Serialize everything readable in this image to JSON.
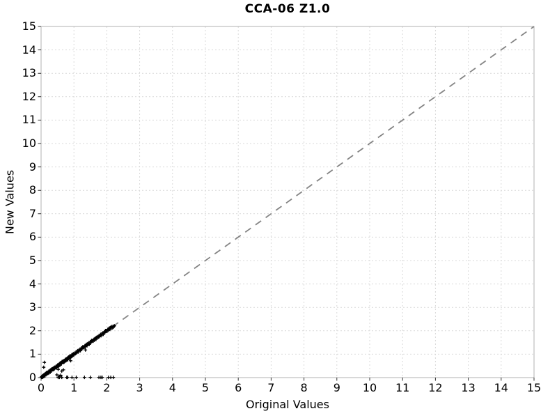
{
  "chart_data": {
    "type": "scatter",
    "title": "CCA-06 Z1.0",
    "xlabel": "Original Values",
    "ylabel": "New Values",
    "xlim": [
      0,
      15
    ],
    "ylim": [
      0,
      15
    ],
    "xticks": [
      0,
      1,
      2,
      3,
      4,
      5,
      6,
      7,
      8,
      9,
      10,
      11,
      12,
      13,
      14,
      15
    ],
    "yticks": [
      0,
      1,
      2,
      3,
      4,
      5,
      6,
      7,
      8,
      9,
      10,
      11,
      12,
      13,
      14,
      15
    ],
    "grid": true,
    "legend": false,
    "identity_line": {
      "from": [
        0,
        0
      ],
      "to": [
        15,
        15
      ],
      "style": "dashed",
      "color": "#848484"
    },
    "marker": {
      "shape": "plus",
      "color": "#000000",
      "size": 5
    },
    "colors": {
      "grid": "#d9d9d9",
      "border": "#b0b0b0",
      "tick": "#333333",
      "text": "#000000",
      "background": "#ffffff"
    },
    "series": [
      {
        "name": "values",
        "points": [
          [
            0.01,
            0.01
          ],
          [
            0.02,
            0.04
          ],
          [
            0.03,
            0.01
          ],
          [
            0.04,
            0.07
          ],
          [
            0.05,
            0.02
          ],
          [
            0.06,
            0.07
          ],
          [
            0.07,
            0.11
          ],
          [
            0.08,
            0.04
          ],
          [
            0.09,
            0.11
          ],
          [
            0.1,
            0.09
          ],
          [
            0.11,
            0.14
          ],
          [
            0.12,
            0.07
          ],
          [
            0.13,
            0.13
          ],
          [
            0.14,
            0.18
          ],
          [
            0.15,
            0.13
          ],
          [
            0.16,
            0.21
          ],
          [
            0.17,
            0.17
          ],
          [
            0.18,
            0.2
          ],
          [
            0.19,
            0.17
          ],
          [
            0.2,
            0.23
          ],
          [
            0.21,
            0.18
          ],
          [
            0.22,
            0.23
          ],
          [
            0.23,
            0.27
          ],
          [
            0.24,
            0.2
          ],
          [
            0.25,
            0.27
          ],
          [
            0.26,
            0.25
          ],
          [
            0.27,
            0.3
          ],
          [
            0.28,
            0.23
          ],
          [
            0.29,
            0.29
          ],
          [
            0.3,
            0.34
          ],
          [
            0.31,
            0.29
          ],
          [
            0.32,
            0.37
          ],
          [
            0.33,
            0.33
          ],
          [
            0.34,
            0.36
          ],
          [
            0.35,
            0.33
          ],
          [
            0.36,
            0.39
          ],
          [
            0.37,
            0.34
          ],
          [
            0.38,
            0.39
          ],
          [
            0.39,
            0.43
          ],
          [
            0.4,
            0.36
          ],
          [
            0.015,
            0.035
          ],
          [
            0.035,
            0.02
          ],
          [
            0.055,
            0.075
          ],
          [
            0.075,
            0.05
          ],
          [
            0.095,
            0.115
          ],
          [
            0.115,
            0.09
          ],
          [
            0.135,
            0.155
          ],
          [
            0.155,
            0.125
          ],
          [
            0.175,
            0.2
          ],
          [
            0.195,
            0.17
          ],
          [
            0.215,
            0.235
          ],
          [
            0.235,
            0.21
          ],
          [
            0.255,
            0.275
          ],
          [
            0.275,
            0.25
          ],
          [
            0.295,
            0.32
          ],
          [
            0.315,
            0.29
          ],
          [
            0.335,
            0.36
          ],
          [
            0.355,
            0.33
          ],
          [
            0.375,
            0.4
          ],
          [
            0.395,
            0.37
          ],
          [
            0.41,
            0.41
          ],
          [
            0.425,
            0.445
          ],
          [
            0.44,
            0.42
          ],
          [
            0.455,
            0.485
          ],
          [
            0.47,
            0.44
          ],
          [
            0.485,
            0.495
          ],
          [
            0.5,
            0.54
          ],
          [
            0.515,
            0.475
          ],
          [
            0.53,
            0.55
          ],
          [
            0.545,
            0.535
          ],
          [
            0.56,
            0.59
          ],
          [
            0.575,
            0.525
          ],
          [
            0.59,
            0.59
          ],
          [
            0.605,
            0.645
          ],
          [
            0.62,
            0.6
          ],
          [
            0.635,
            0.685
          ],
          [
            0.65,
            0.66
          ],
          [
            0.665,
            0.685
          ],
          [
            0.68,
            0.65
          ],
          [
            0.695,
            0.725
          ],
          [
            0.71,
            0.68
          ],
          [
            0.725,
            0.745
          ],
          [
            0.74,
            0.78
          ],
          [
            0.755,
            0.715
          ],
          [
            0.77,
            0.8
          ],
          [
            0.785,
            0.775
          ],
          [
            0.8,
            0.83
          ],
          [
            0.815,
            0.765
          ],
          [
            0.83,
            0.83
          ],
          [
            0.845,
            0.885
          ],
          [
            0.86,
            0.84
          ],
          [
            0.875,
            0.925
          ],
          [
            0.89,
            0.87
          ],
          [
            0.905,
            0.925
          ],
          [
            0.92,
            0.89
          ],
          [
            0.935,
            0.975
          ],
          [
            0.95,
            0.92
          ],
          [
            0.965,
            0.985
          ],
          [
            0.98,
            1.02
          ],
          [
            0.995,
            0.955
          ],
          [
            0.42,
            0.45
          ],
          [
            0.46,
            0.43
          ],
          [
            0.5,
            0.52
          ],
          [
            0.54,
            0.5
          ],
          [
            0.58,
            0.62
          ],
          [
            0.62,
            0.59
          ],
          [
            0.66,
            0.7
          ],
          [
            0.7,
            0.66
          ],
          [
            0.74,
            0.77
          ],
          [
            0.78,
            0.74
          ],
          [
            0.82,
            0.86
          ],
          [
            0.86,
            0.82
          ],
          [
            0.9,
            0.93
          ],
          [
            0.94,
            0.91
          ],
          [
            0.98,
            1.01
          ],
          [
            1.01,
            1.01
          ],
          [
            1.027,
            1.047
          ],
          [
            1.044,
            1.024
          ],
          [
            1.061,
            1.091
          ],
          [
            1.078,
            1.048
          ],
          [
            1.095,
            1.105
          ],
          [
            1.112,
            1.152
          ],
          [
            1.129,
            1.089
          ],
          [
            1.146,
            1.166
          ],
          [
            1.163,
            1.153
          ],
          [
            1.18,
            1.21
          ],
          [
            1.197,
            1.147
          ],
          [
            1.214,
            1.214
          ],
          [
            1.231,
            1.271
          ],
          [
            1.248,
            1.228
          ],
          [
            1.265,
            1.315
          ],
          [
            1.282,
            1.292
          ],
          [
            1.299,
            1.319
          ],
          [
            1.316,
            1.286
          ],
          [
            1.333,
            1.363
          ],
          [
            1.35,
            1.32
          ],
          [
            1.367,
            1.387
          ],
          [
            1.384,
            1.424
          ],
          [
            1.401,
            1.361
          ],
          [
            1.418,
            1.448
          ],
          [
            1.435,
            1.425
          ],
          [
            1.452,
            1.482
          ],
          [
            1.469,
            1.419
          ],
          [
            1.486,
            1.486
          ],
          [
            1.503,
            1.543
          ],
          [
            1.52,
            1.5
          ],
          [
            1.537,
            1.587
          ],
          [
            1.554,
            1.564
          ],
          [
            1.571,
            1.591
          ],
          [
            1.588,
            1.558
          ],
          [
            1.605,
            1.635
          ],
          [
            1.622,
            1.592
          ],
          [
            1.639,
            1.659
          ],
          [
            1.656,
            1.696
          ],
          [
            1.673,
            1.633
          ],
          [
            1.69,
            1.72
          ],
          [
            1.707,
            1.697
          ],
          [
            1.724,
            1.754
          ],
          [
            1.741,
            1.721
          ],
          [
            1.758,
            1.788
          ],
          [
            1.775,
            1.745
          ],
          [
            1.792,
            1.802
          ],
          [
            1.809,
            1.849
          ],
          [
            1.826,
            1.786
          ],
          [
            1.843,
            1.863
          ],
          [
            1.86,
            1.85
          ],
          [
            1.877,
            1.907
          ],
          [
            1.894,
            1.844
          ],
          [
            1.911,
            1.911
          ],
          [
            1.928,
            1.968
          ],
          [
            1.945,
            1.925
          ],
          [
            1.962,
            2.012
          ],
          [
            1.979,
            1.989
          ],
          [
            1.996,
            2.016
          ],
          [
            2.013,
            1.983
          ],
          [
            2.03,
            2.06
          ],
          [
            2.047,
            2.017
          ],
          [
            2.064,
            2.084
          ],
          [
            2.081,
            2.121
          ],
          [
            2.098,
            2.058
          ],
          [
            2.115,
            2.145
          ],
          [
            2.132,
            2.122
          ],
          [
            2.149,
            2.179
          ],
          [
            2.166,
            2.116
          ],
          [
            2.183,
            2.183
          ],
          [
            2.2,
            2.15
          ],
          [
            2.217,
            2.195
          ],
          [
            2.234,
            2.214
          ],
          [
            0.1,
            0.65
          ],
          [
            0.08,
            0.44
          ],
          [
            0.48,
            0.12
          ],
          [
            0.55,
            0.06
          ],
          [
            0.6,
            0.1
          ],
          [
            0.63,
            0.28
          ],
          [
            0.68,
            0.33
          ],
          [
            0.52,
            0.35
          ],
          [
            1.35,
            1.18
          ],
          [
            0.9,
            0.72
          ],
          [
            0.52,
            0.01
          ],
          [
            0.56,
            0.01
          ],
          [
            0.63,
            0.01
          ],
          [
            0.78,
            0.01
          ],
          [
            0.81,
            0.01
          ],
          [
            0.94,
            0.01
          ],
          [
            1.07,
            0.01
          ],
          [
            1.32,
            0.01
          ],
          [
            1.5,
            0.01
          ],
          [
            1.76,
            0.01
          ],
          [
            1.82,
            0.01
          ],
          [
            1.86,
            0.01
          ],
          [
            2.05,
            0.01
          ],
          [
            2.12,
            0.01
          ],
          [
            2.2,
            0.01
          ]
        ]
      }
    ]
  }
}
